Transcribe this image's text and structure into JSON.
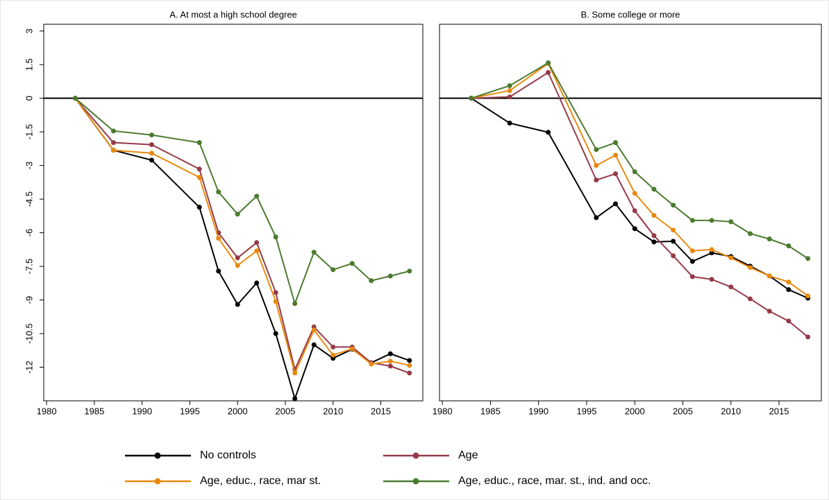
{
  "chart_data": [
    {
      "type": "line",
      "title": "A. At most a high school degree",
      "x": [
        1983,
        1987,
        1991,
        1996,
        1998,
        2000,
        2002,
        2004,
        2006,
        2008,
        2010,
        2012,
        2014,
        2016,
        2018
      ],
      "xlim": [
        1979.7,
        2019.4
      ],
      "xticks": [
        1980,
        1985,
        1990,
        1995,
        2000,
        2005,
        2010,
        2015
      ],
      "ylim": [
        -13.5,
        3.3
      ],
      "yticks": [
        3,
        1.5,
        0,
        -1.5,
        -3,
        -4.5,
        -6,
        -7.5,
        -9,
        -10.5,
        -12
      ],
      "reference_line": 0,
      "series": [
        {
          "name": "No controls",
          "color": "#000000",
          "values": [
            0,
            -2.32,
            -2.76,
            -4.86,
            -7.71,
            -9.2,
            -8.24,
            -10.5,
            -13.4,
            -11.0,
            -11.6,
            -11.2,
            -11.8,
            -11.4,
            -11.7
          ]
        },
        {
          "name": "Age",
          "color": "#953a48",
          "values": [
            0,
            -1.98,
            -2.07,
            -3.16,
            -6.0,
            -7.12,
            -6.44,
            -8.67,
            -12.1,
            -10.2,
            -11.1,
            -11.1,
            -11.8,
            -11.95,
            -12.26
          ]
        },
        {
          "name": "Age, educ., race, mar st.",
          "color": "#e98a0f",
          "values": [
            0,
            -2.32,
            -2.45,
            -3.53,
            -6.25,
            -7.46,
            -6.81,
            -9.07,
            -12.26,
            -10.34,
            -11.46,
            -11.18,
            -11.86,
            -11.73,
            -11.92
          ]
        },
        {
          "name": "Age, educ., race, mar. st., ind. and occ.",
          "color": "#4b7a2e",
          "values": [
            0,
            -1.46,
            -1.64,
            -1.98,
            -4.18,
            -5.17,
            -4.37,
            -6.19,
            -9.16,
            -6.87,
            -7.65,
            -7.37,
            -8.14,
            -7.93,
            -7.71
          ]
        }
      ]
    },
    {
      "type": "line",
      "title": "B. Some college or more",
      "x": [
        1983,
        1987,
        1991,
        1996,
        1998,
        2000,
        2002,
        2004,
        2006,
        2008,
        2010,
        2012,
        2014,
        2016,
        2018
      ],
      "xlim": [
        1979.7,
        2019.4
      ],
      "xticks": [
        1980,
        1985,
        1990,
        1995,
        2000,
        2005,
        2010,
        2015
      ],
      "ylim": [
        -13.5,
        3.3
      ],
      "reference_line": 0,
      "series": [
        {
          "color": "#000000",
          "values": [
            0,
            -1.11,
            -1.52,
            -5.33,
            -4.71,
            -5.82,
            -6.41,
            -6.38,
            -7.28,
            -6.9,
            -7.06,
            -7.49,
            -7.93,
            -8.54,
            -8.92
          ]
        },
        {
          "color": "#953a48",
          "values": [
            0,
            0.06,
            1.15,
            -3.65,
            -3.37,
            -5.02,
            -6.13,
            -7.03,
            -7.96,
            -8.08,
            -8.42,
            -8.95,
            -9.5,
            -9.94,
            -10.65
          ]
        },
        {
          "color": "#e98a0f",
          "values": [
            0,
            0.34,
            1.55,
            -3.0,
            -2.54,
            -4.24,
            -5.23,
            -5.88,
            -6.81,
            -6.75,
            -7.12,
            -7.55,
            -7.93,
            -8.2,
            -8.82
          ]
        },
        {
          "color": "#4b7a2e",
          "values": [
            0,
            0.56,
            1.58,
            -2.29,
            -1.98,
            -3.28,
            -4.06,
            -4.77,
            -5.45,
            -5.45,
            -5.51,
            -6.04,
            -6.28,
            -6.59,
            -7.15
          ]
        }
      ]
    }
  ]
}
